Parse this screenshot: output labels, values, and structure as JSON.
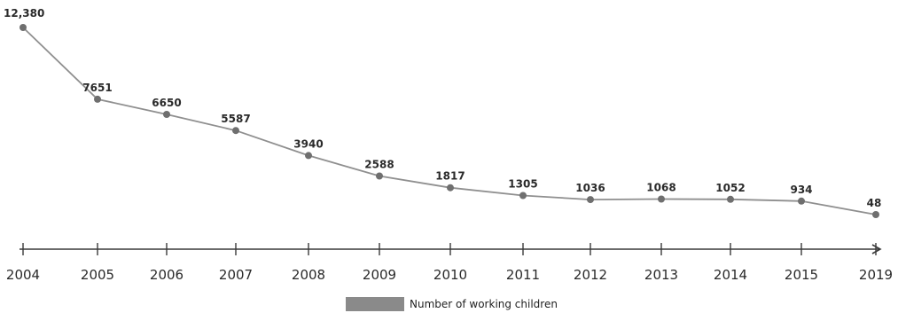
{
  "chart_data": {
    "type": "line",
    "x": [
      "2004",
      "2005",
      "2006",
      "2007",
      "2008",
      "2009",
      "2010",
      "2011",
      "2012",
      "2013",
      "2014",
      "2015",
      "2019"
    ],
    "series": [
      {
        "name": "Number of working children",
        "values": [
          12380,
          7651,
          6650,
          5587,
          3940,
          2588,
          1817,
          1305,
          1036,
          1068,
          1052,
          934,
          48
        ],
        "labels": [
          "12,380",
          "7651",
          "6650",
          "5587",
          "3940",
          "2588",
          "1817",
          "1305",
          "1036",
          "1068",
          "1052",
          "934",
          "48"
        ]
      }
    ],
    "title": "",
    "xlabel": "",
    "ylabel": "",
    "legend_position": "bottom-center",
    "grid": false,
    "y_axis_visible": false,
    "colors": {
      "line": "#8f8f8f",
      "marker": "#6f6f6f",
      "axis": "#3a3a3a",
      "legend_swatch": "#8a8a8a"
    }
  },
  "legend": {
    "label": "Number of working children"
  }
}
